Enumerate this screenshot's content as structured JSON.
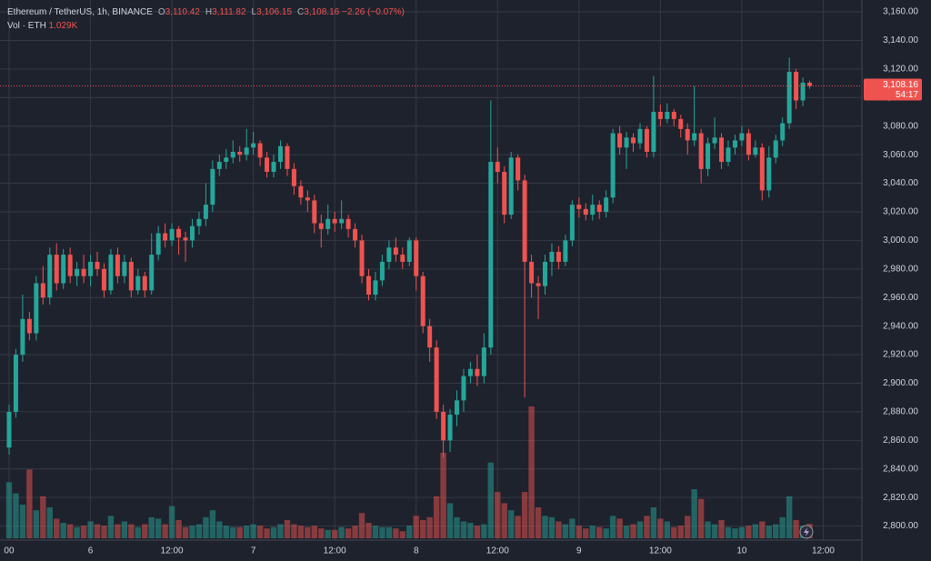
{
  "header": {
    "symbol": "Ethereum / TetherUS, 1h, BINANCE",
    "ohlc": [
      {
        "key": "O",
        "text": "3,110.42"
      },
      {
        "key": "H",
        "text": "3,111.82"
      },
      {
        "key": "L",
        "text": "3,106.15"
      },
      {
        "key": "C",
        "text": "3,108.16"
      }
    ],
    "change": "−2.26 (−0.07%)",
    "volume_label": "Vol · ETH",
    "volume_text": "1.029K"
  },
  "chart_data": {
    "type": "candlestick",
    "up_color": "#26a69a",
    "down_color": "#ef5350",
    "grid": true,
    "xlim": [
      -1.34,
      125.7
    ],
    "xticks": [
      {
        "value": 0,
        "label": "00"
      },
      {
        "value": 12,
        "label": "6"
      },
      {
        "value": 24,
        "label": "12:00"
      },
      {
        "value": 36,
        "label": "7"
      },
      {
        "value": 48,
        "label": "12:00"
      },
      {
        "value": 60,
        "label": "8"
      },
      {
        "value": 72,
        "label": "12:00"
      },
      {
        "value": 84,
        "label": "9"
      },
      {
        "value": 96,
        "label": "12:00"
      },
      {
        "value": 108,
        "label": "10"
      },
      {
        "value": 120,
        "label": "12:00"
      }
    ],
    "ylim": [
      2790.2,
      3168.3
    ],
    "yticks": [
      {
        "value": 2800,
        "label": "2,800.00"
      },
      {
        "value": 2820,
        "label": "2,820.00"
      },
      {
        "value": 2840,
        "label": "2,840.00"
      },
      {
        "value": 2860,
        "label": "2,860.00"
      },
      {
        "value": 2880,
        "label": "2,880.00"
      },
      {
        "value": 2900,
        "label": "2,900.00"
      },
      {
        "value": 2920,
        "label": "2,920.00"
      },
      {
        "value": 2940,
        "label": "2,940.00"
      },
      {
        "value": 2960,
        "label": "2,960.00"
      },
      {
        "value": 2980,
        "label": "2,980.00"
      },
      {
        "value": 3000,
        "label": "3,000.00"
      },
      {
        "value": 3020,
        "label": "3,020.00"
      },
      {
        "value": 3040,
        "label": "3,040.00"
      },
      {
        "value": 3060,
        "label": "3,060.00"
      },
      {
        "value": 3080,
        "label": "3,080.00"
      },
      {
        "value": 3100,
        "label": "3,100.00"
      },
      {
        "value": 3120,
        "label": "3,120.00"
      },
      {
        "value": 3140,
        "label": "3,140.00"
      },
      {
        "value": 3160,
        "label": "3,160.00"
      }
    ],
    "price_line": {
      "value": 3108.16,
      "label": "3,108.16"
    },
    "countdown": "54:17",
    "open": [
      2855,
      2880,
      2920,
      2945,
      2935,
      2970,
      2960,
      2990,
      2970,
      2990,
      2975,
      2980,
      2975,
      2985,
      2980,
      2965,
      2990,
      2975,
      2985,
      2965,
      2975,
      2965,
      2990,
      3005,
      3000,
      3008,
      3002,
      3000,
      3010,
      3015,
      3025,
      3050,
      3055,
      3058,
      3062,
      3060,
      3065,
      3068,
      3058,
      3048,
      3055,
      3066,
      3050,
      3038,
      3030,
      3028,
      3012,
      3008,
      3015,
      3012,
      3015,
      3008,
      3000,
      2975,
      2962,
      2972,
      2985,
      2995,
      2990,
      2985,
      3000,
      2975,
      2940,
      2925,
      2880,
      2860,
      2878,
      2888,
      2905,
      2910,
      2905,
      2925,
      3055,
      3048,
      3018,
      3058,
      3042,
      2985,
      2970,
      2968,
      2985,
      2992,
      2985,
      3000,
      3025,
      3022,
      3018,
      3025,
      3020,
      3030,
      3075,
      3065,
      3072,
      3068,
      3078,
      3062,
      3090,
      3085,
      3090,
      3085,
      3078,
      3070,
      3075,
      3050,
      3068,
      3072,
      3055,
      3065,
      3070,
      3075,
      3060,
      3065,
      3035,
      3058,
      3070,
      3082,
      3118,
      3098,
      3110.42
    ],
    "high": [
      2885,
      2924,
      2962,
      2950,
      2975,
      2982,
      2995,
      2998,
      2994,
      2995,
      2985,
      2990,
      2990,
      2992,
      2984,
      2994,
      2995,
      2990,
      2988,
      2980,
      2978,
      3005,
      3010,
      3012,
      3012,
      3010,
      3006,
      3015,
      3020,
      3040,
      3056,
      3060,
      3064,
      3070,
      3066,
      3078,
      3076,
      3070,
      3062,
      3060,
      3070,
      3068,
      3054,
      3042,
      3035,
      3032,
      3018,
      3025,
      3020,
      3028,
      3018,
      3012,
      3004,
      2980,
      2978,
      2990,
      3000,
      3002,
      2995,
      3002,
      3002,
      2978,
      2945,
      2930,
      2885,
      2882,
      2895,
      2910,
      2915,
      2920,
      2935,
      3098,
      3065,
      3052,
      3062,
      3060,
      3046,
      2990,
      2975,
      2990,
      2998,
      2996,
      3004,
      3028,
      3030,
      3026,
      3032,
      3028,
      3035,
      3078,
      3080,
      3076,
      3075,
      3082,
      3080,
      3115,
      3095,
      3096,
      3092,
      3088,
      3082,
      3108,
      3078,
      3072,
      3086,
      3075,
      3070,
      3074,
      3080,
      3078,
      3070,
      3068,
      3066,
      3074,
      3086,
      3128,
      3120,
      3114,
      3111.82
    ],
    "low": [
      2850,
      2876,
      2915,
      2930,
      2930,
      2955,
      2955,
      2965,
      2966,
      2970,
      2968,
      2970,
      2968,
      2975,
      2960,
      2962,
      2970,
      2970,
      2960,
      2962,
      2960,
      2962,
      2986,
      2995,
      2996,
      2990,
      2985,
      2995,
      3004,
      3010,
      3020,
      3045,
      3050,
      3054,
      3055,
      3056,
      3060,
      3052,
      3044,
      3044,
      3050,
      3045,
      3032,
      3025,
      3020,
      3005,
      2995,
      3004,
      3006,
      3008,
      3002,
      2995,
      2970,
      2958,
      2958,
      2968,
      2980,
      2985,
      2980,
      2982,
      2965,
      2935,
      2915,
      2875,
      2848,
      2852,
      2870,
      2880,
      2900,
      2898,
      2900,
      2920,
      3040,
      3012,
      3015,
      3035,
      2890,
      2960,
      2945,
      2962,
      2975,
      2980,
      2982,
      2996,
      3016,
      3014,
      3014,
      3015,
      3016,
      3026,
      3060,
      3050,
      3062,
      3064,
      3058,
      3058,
      3080,
      3082,
      3080,
      3072,
      3060,
      3066,
      3040,
      3045,
      3064,
      3050,
      3052,
      3060,
      3066,
      3056,
      3058,
      3028,
      3030,
      3054,
      3066,
      3078,
      3092,
      3094,
      3106.15
    ],
    "close": [
      2880,
      2920,
      2945,
      2935,
      2970,
      2960,
      2990,
      2970,
      2990,
      2975,
      2980,
      2975,
      2985,
      2980,
      2965,
      2990,
      2975,
      2985,
      2965,
      2975,
      2965,
      2990,
      3005,
      3000,
      3008,
      3002,
      3000,
      3010,
      3015,
      3025,
      3050,
      3055,
      3058,
      3062,
      3060,
      3065,
      3068,
      3058,
      3048,
      3055,
      3066,
      3050,
      3038,
      3030,
      3028,
      3012,
      3008,
      3015,
      3012,
      3015,
      3008,
      3000,
      2975,
      2962,
      2972,
      2985,
      2995,
      2990,
      2985,
      3000,
      2975,
      2940,
      2925,
      2880,
      2860,
      2878,
      2888,
      2905,
      2910,
      2905,
      2925,
      3055,
      3048,
      3018,
      3058,
      3042,
      2985,
      2970,
      2968,
      2985,
      2992,
      2985,
      3000,
      3025,
      3022,
      3018,
      3025,
      3020,
      3030,
      3075,
      3065,
      3072,
      3068,
      3078,
      3062,
      3090,
      3085,
      3090,
      3085,
      3078,
      3070,
      3075,
      3050,
      3068,
      3072,
      3055,
      3065,
      3070,
      3075,
      3060,
      3065,
      3035,
      3058,
      3070,
      3082,
      3118,
      3098,
      3110.42,
      3108.16
    ],
    "volume": [
      4.0,
      3.2,
      2.4,
      4.9,
      2.0,
      3.0,
      2.2,
      1.4,
      1.1,
      1.0,
      0.8,
      0.9,
      1.2,
      1.0,
      0.9,
      1.6,
      1.0,
      1.2,
      1.0,
      0.8,
      1.0,
      1.5,
      1.4,
      1.0,
      2.3,
      1.3,
      0.8,
      0.9,
      1.0,
      1.5,
      2.0,
      1.2,
      0.9,
      0.8,
      0.8,
      0.9,
      1.0,
      0.9,
      0.7,
      0.8,
      1.0,
      1.3,
      1.0,
      0.9,
      0.8,
      0.9,
      0.7,
      0.6,
      0.6,
      0.8,
      0.7,
      0.9,
      1.8,
      1.1,
      0.9,
      0.8,
      0.8,
      0.7,
      0.5,
      0.9,
      1.6,
      1.3,
      1.5,
      3.0,
      6.1,
      2.5,
      1.5,
      1.2,
      1.1,
      0.9,
      1.0,
      5.4,
      3.3,
      2.5,
      2.0,
      1.6,
      3.3,
      9.4,
      2.2,
      1.6,
      1.5,
      1.2,
      1.0,
      1.4,
      0.9,
      0.7,
      0.9,
      0.8,
      0.7,
      1.6,
      1.4,
      0.9,
      1.0,
      1.2,
      1.6,
      2.2,
      1.4,
      1.2,
      0.8,
      0.9,
      1.6,
      3.5,
      2.8,
      1.2,
      1.0,
      1.3,
      0.8,
      0.7,
      0.8,
      0.9,
      1.0,
      1.2,
      0.9,
      1.0,
      1.5,
      3.0,
      1.3,
      0.9,
      1.029
    ]
  }
}
